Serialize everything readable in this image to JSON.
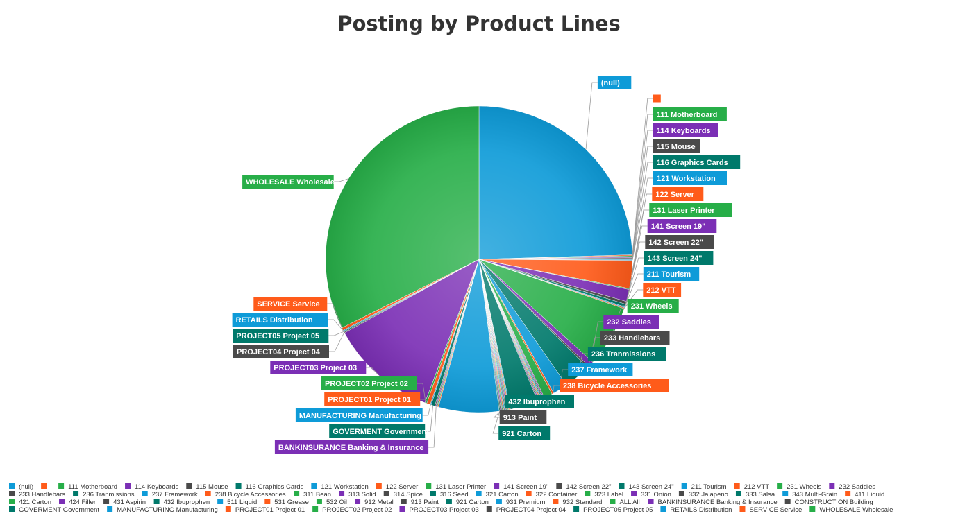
{
  "chart_data": {
    "type": "pie",
    "title": "Posting by Product Lines",
    "legend_position": "bottom",
    "palette": [
      "#0e9bd8",
      "#ff5b1a",
      "#27ae48",
      "#7b2fb5",
      "#4a4a4a",
      "#00796b"
    ],
    "slices": [
      {
        "label": "(null)",
        "value": 25.0
      },
      {
        "label": "",
        "value": 0.1
      },
      {
        "label": "111 Motherboard",
        "value": 0.1
      },
      {
        "label": "114 Keyboards",
        "value": 0.1
      },
      {
        "label": "115 Mouse",
        "value": 0.1
      },
      {
        "label": "116 Graphics Cards",
        "value": 0.1
      },
      {
        "label": "121 Workstation",
        "value": 0.1
      },
      {
        "label": "122 Server",
        "value": 3.0
      },
      {
        "label": "131 Laser Printer",
        "value": 0.1
      },
      {
        "label": "141 Screen 19\"",
        "value": 1.3
      },
      {
        "label": "142 Screen 22\"",
        "value": 0.3
      },
      {
        "label": "143 Screen 24\"",
        "value": 0.3
      },
      {
        "label": "211 Tourism",
        "value": 0.1
      },
      {
        "label": "212 VTT",
        "value": 0.1
      },
      {
        "label": "231 Wheels",
        "value": 6.6
      },
      {
        "label": "232 Saddles",
        "value": 0.6
      },
      {
        "label": "233 Handlebars",
        "value": 0.2
      },
      {
        "label": "236 Tranmissions",
        "value": 2.9
      },
      {
        "label": "237 Framework",
        "value": 1.6
      },
      {
        "label": "238 Bicycle Accessories",
        "value": 0.2
      },
      {
        "label": "311 Bean",
        "value": 0.9
      },
      {
        "label": "313 Solid",
        "value": 0.1
      },
      {
        "label": "314 Spice",
        "value": 0.1
      },
      {
        "label": "316 Seed",
        "value": 0.1
      },
      {
        "label": "321 Carton",
        "value": 0.1
      },
      {
        "label": "322 Container",
        "value": 0.1
      },
      {
        "label": "323 Label",
        "value": 0.1
      },
      {
        "label": "331 Onion",
        "value": 0.1
      },
      {
        "label": "332 Jalapeno",
        "value": 0.1
      },
      {
        "label": "333 Salsa",
        "value": 3.0
      },
      {
        "label": "343 Multi-Grain",
        "value": 0.1
      },
      {
        "label": "411 Liquid",
        "value": 0.1
      },
      {
        "label": "421 Carton",
        "value": 0.1
      },
      {
        "label": "424 Filler",
        "value": 0.1
      },
      {
        "label": "431 Aspirin",
        "value": 0.1
      },
      {
        "label": "432 Ibuprophen",
        "value": 0.1
      },
      {
        "label": "511 Liquid",
        "value": 0.1
      },
      {
        "label": "531 Grease",
        "value": 0.1
      },
      {
        "label": "532 Oil",
        "value": 0.1
      },
      {
        "label": "912 Metal",
        "value": 0.1
      },
      {
        "label": "913 Paint",
        "value": 0.1
      },
      {
        "label": "921 Carton",
        "value": 0.1
      },
      {
        "label": "931 Premium",
        "value": 6.5
      },
      {
        "label": "932 Standard",
        "value": 0.1
      },
      {
        "label": "ALL All",
        "value": 0.1
      },
      {
        "label": "BANKINSURANCE Banking & Insurance",
        "value": 0.1
      },
      {
        "label": "CONSTRUCTION Building",
        "value": 0.1
      },
      {
        "label": "GOVERMENT Government",
        "value": 0.4
      },
      {
        "label": "MANUFACTURING Manufacturing",
        "value": 0.1
      },
      {
        "label": "PROJECT01 Project 01",
        "value": 0.4
      },
      {
        "label": "PROJECT02 Project 02",
        "value": 0.2
      },
      {
        "label": "PROJECT03 Project 03",
        "value": 11.5
      },
      {
        "label": "PROJECT04 Project 04",
        "value": 0.1
      },
      {
        "label": "PROJECT05 Project 05",
        "value": 0.1
      },
      {
        "label": "RETAILS Distribution",
        "value": 0.1
      },
      {
        "label": "SERVICE Service",
        "value": 0.3
      },
      {
        "label": "WHOLESALE Wholesale",
        "value": 33.0
      }
    ],
    "data_labels": [
      {
        "idx": 0,
        "text": "(null)"
      },
      {
        "idx": 1,
        "text": ""
      },
      {
        "idx": 2,
        "text": "111 Motherboard"
      },
      {
        "idx": 3,
        "text": "114 Keyboards"
      },
      {
        "idx": 4,
        "text": "115 Mouse"
      },
      {
        "idx": 5,
        "text": "116 Graphics Cards"
      },
      {
        "idx": 6,
        "text": "121 Workstation"
      },
      {
        "idx": 7,
        "text": "122 Server"
      },
      {
        "idx": 8,
        "text": "131 Laser Printer"
      },
      {
        "idx": 9,
        "text": "141 Screen 19\""
      },
      {
        "idx": 10,
        "text": "142 Screen 22\""
      },
      {
        "idx": 11,
        "text": "143 Screen 24\""
      },
      {
        "idx": 12,
        "text": "211 Tourism"
      },
      {
        "idx": 13,
        "text": "212 VTT"
      },
      {
        "idx": 14,
        "text": "231 Wheels"
      },
      {
        "idx": 15,
        "text": "232 Saddles"
      },
      {
        "idx": 16,
        "text": "233 Handlebars"
      },
      {
        "idx": 17,
        "text": "236 Tranmissions"
      },
      {
        "idx": 18,
        "text": "237 Framework"
      },
      {
        "idx": 19,
        "text": "238 Bicycle Accessories"
      },
      {
        "idx": 35,
        "text": "432 Ibuprophen"
      },
      {
        "idx": 40,
        "text": "913 Paint"
      },
      {
        "idx": 41,
        "text": "921 Carton"
      },
      {
        "idx": 45,
        "text": "BANKINSURANCE Banking & Insurance"
      },
      {
        "idx": 47,
        "text": "GOVERMENT Government"
      },
      {
        "idx": 48,
        "text": "MANUFACTURING Manufacturing"
      },
      {
        "idx": 49,
        "text": "PROJECT01 Project 01"
      },
      {
        "idx": 50,
        "text": "PROJECT02 Project 02"
      },
      {
        "idx": 51,
        "text": "PROJECT03 Project 03"
      },
      {
        "idx": 52,
        "text": "PROJECT04 Project 04"
      },
      {
        "idx": 53,
        "text": "PROJECT05 Project 05"
      },
      {
        "idx": 54,
        "text": "RETAILS Distribution"
      },
      {
        "idx": 55,
        "text": "SERVICE Service"
      },
      {
        "idx": 56,
        "text": "WHOLESALE Wholesale"
      }
    ]
  }
}
